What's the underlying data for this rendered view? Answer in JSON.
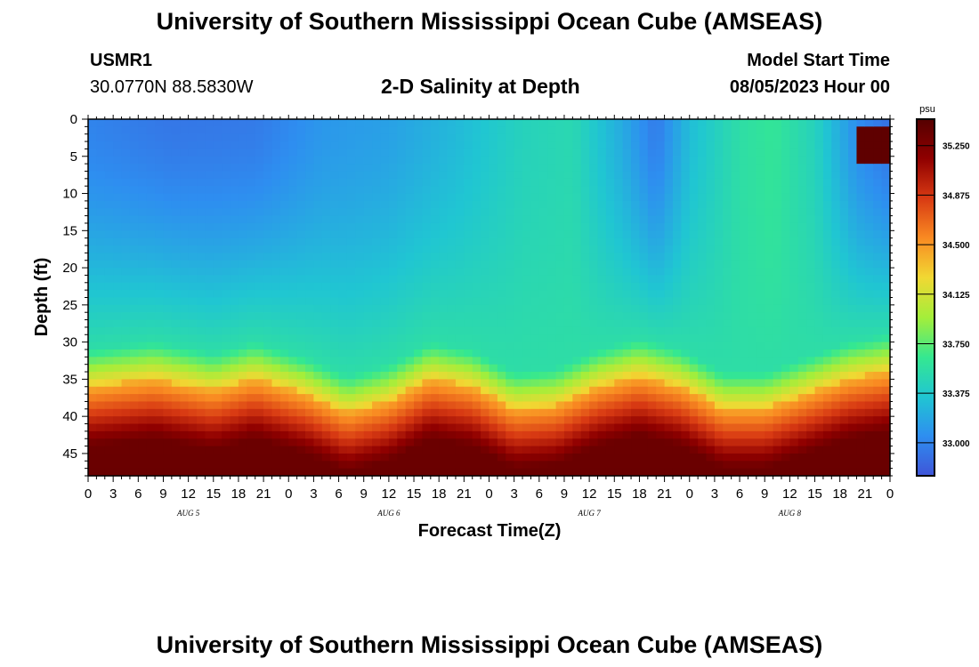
{
  "header": {
    "title": "University of Southern Mississippi Ocean Cube (AMSEAS)",
    "station_id": "USMR1",
    "station_coords": "30.0770N  88.5830W",
    "subtitle": "2-D Salinity at Depth",
    "model_label": "Model Start Time",
    "model_value": "08/05/2023 Hour 00"
  },
  "footer": {
    "title": "University of Southern Mississippi Ocean Cube (AMSEAS)"
  },
  "chart_data": {
    "type": "heatmap",
    "title": "2-D Salinity at Depth",
    "xlabel": "Forecast Time(Z)",
    "ylabel": "Depth (ft)",
    "units": "psu",
    "x_range_hours": [
      0,
      96
    ],
    "y_range_ft": [
      0,
      48
    ],
    "y_ticks": [
      "0",
      "5",
      "10",
      "15",
      "20",
      "25",
      "30",
      "35",
      "40",
      "45"
    ],
    "x_ticks": [
      "0",
      "3",
      "6",
      "9",
      "12",
      "15",
      "18",
      "21",
      "0",
      "3",
      "6",
      "9",
      "12",
      "15",
      "18",
      "21",
      "0",
      "3",
      "6",
      "9",
      "12",
      "15",
      "18",
      "21",
      "0",
      "3",
      "6",
      "9",
      "12",
      "15",
      "18",
      "21",
      "0"
    ],
    "day_labels": [
      {
        "label": "AUG 5",
        "hour": 12
      },
      {
        "label": "AUG 6",
        "hour": 36
      },
      {
        "label": "AUG 7",
        "hour": 60
      },
      {
        "label": "AUG 8",
        "hour": 84
      }
    ],
    "colorbar": {
      "min": 32.75,
      "max": 35.45,
      "ticks": [
        "33.000",
        "33.375",
        "33.750",
        "34.125",
        "34.500",
        "34.875",
        "35.250"
      ],
      "colors": [
        "#3f55d8",
        "#2e8ef0",
        "#20c6d2",
        "#35e890",
        "#a4ee3a",
        "#f1d833",
        "#f98a22",
        "#d83a13",
        "#900000",
        "#550000"
      ]
    },
    "halocline_depth_ft": [
      {
        "hour": 0,
        "depth": 36
      },
      {
        "hour": 8,
        "depth": 35
      },
      {
        "hour": 15,
        "depth": 36.5
      },
      {
        "hour": 20,
        "depth": 35
      },
      {
        "hour": 26,
        "depth": 37
      },
      {
        "hour": 31,
        "depth": 39.5
      },
      {
        "hour": 36,
        "depth": 38
      },
      {
        "hour": 41,
        "depth": 35
      },
      {
        "hour": 46,
        "depth": 36
      },
      {
        "hour": 51,
        "depth": 39
      },
      {
        "hour": 56,
        "depth": 38.5
      },
      {
        "hour": 61,
        "depth": 36
      },
      {
        "hour": 66,
        "depth": 34.5
      },
      {
        "hour": 71,
        "depth": 36
      },
      {
        "hour": 76,
        "depth": 39
      },
      {
        "hour": 81,
        "depth": 39
      },
      {
        "hour": 86,
        "depth": 37
      },
      {
        "hour": 91,
        "depth": 35
      },
      {
        "hour": 96,
        "depth": 34
      }
    ],
    "surface_salinity_psu": [
      {
        "hour": 0,
        "value": 33.0
      },
      {
        "hour": 10,
        "value": 32.93
      },
      {
        "hour": 20,
        "value": 32.95
      },
      {
        "hour": 28,
        "value": 33.1
      },
      {
        "hour": 36,
        "value": 33.15
      },
      {
        "hour": 44,
        "value": 33.28
      },
      {
        "hour": 52,
        "value": 33.45
      },
      {
        "hour": 58,
        "value": 33.5
      },
      {
        "hour": 64,
        "value": 33.2
      },
      {
        "hour": 68,
        "value": 32.95
      },
      {
        "hour": 72,
        "value": 33.3
      },
      {
        "hour": 78,
        "value": 33.55
      },
      {
        "hour": 82,
        "value": 33.62
      },
      {
        "hour": 87,
        "value": 33.45
      },
      {
        "hour": 92,
        "value": 33.05
      },
      {
        "hour": 96,
        "value": 32.9
      }
    ],
    "low_salinity_spot": {
      "hour": 94,
      "depth_ft": 3.5,
      "value": 35.4
    }
  }
}
